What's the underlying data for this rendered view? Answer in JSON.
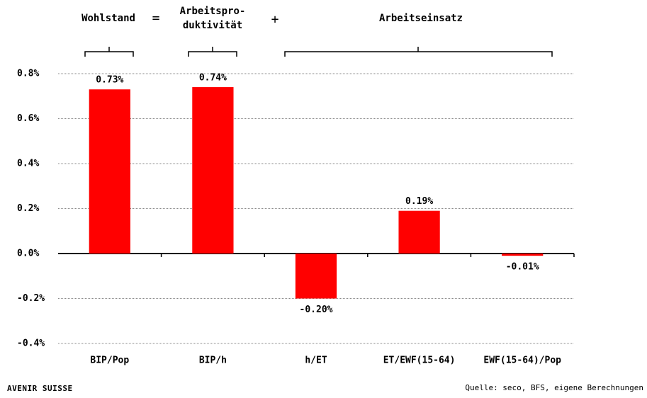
{
  "chart_data": {
    "type": "bar",
    "header": {
      "left": "Wohlstand",
      "equals": "=",
      "middle": [
        "Arbeitspro-",
        "duktivität"
      ],
      "plus": "+",
      "right": "Arbeitseinsatz"
    },
    "categories": [
      "BIP/Pop",
      "BIP/h",
      "h/ET",
      "ET/EWF(15-64)",
      "EWF(15-64)/Pop"
    ],
    "values": [
      0.73,
      0.74,
      -0.2,
      0.19,
      -0.01
    ],
    "value_labels": [
      "0.73%",
      "0.74%",
      "-0.20%",
      "0.19%",
      "-0.01%"
    ],
    "color": "#ff0000",
    "ylim": [
      -0.4,
      0.8
    ],
    "yticks": [
      {
        "value": -0.4,
        "label": "-0.4%"
      },
      {
        "value": -0.2,
        "label": "-0.2%"
      },
      {
        "value": 0,
        "label": "0.0%"
      },
      {
        "value": 0.2,
        "label": "0.2%"
      },
      {
        "value": 0.4,
        "label": "0.4%"
      },
      {
        "value": 0.6,
        "label": "0.6%"
      },
      {
        "value": 0.8,
        "label": "0.8%"
      }
    ],
    "grid": true,
    "logo": "Avenir Suisse",
    "source": "Quelle: seco, BFS, eigene Berechnungen"
  }
}
